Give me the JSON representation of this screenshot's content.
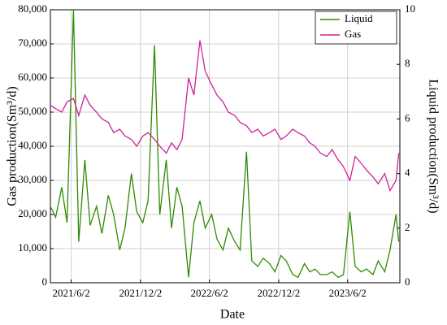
{
  "chart_data": {
    "type": "line",
    "xlabel": "Date",
    "ylabel": "Gas production(Sm³/d)",
    "y2label": "Liquid production(Sm³/d)",
    "x": [
      "2021/4/8",
      "2021/4/22",
      "2021/5/8",
      "2021/5/22",
      "2021/6/8",
      "2021/6/22",
      "2021/7/8",
      "2021/7/22",
      "2021/8/8",
      "2021/8/22",
      "2021/9/8",
      "2021/9/22",
      "2021/10/8",
      "2021/10/22",
      "2021/11/8",
      "2021/11/22",
      "2021/12/8",
      "2021/12/22",
      "2022/1/8",
      "2022/1/22",
      "2022/2/8",
      "2022/2/22",
      "2022/3/8",
      "2022/3/22",
      "2022/4/8",
      "2022/4/22",
      "2022/5/8",
      "2022/5/22",
      "2022/6/8",
      "2022/6/22",
      "2022/7/8",
      "2022/7/22",
      "2022/8/8",
      "2022/8/22",
      "2022/9/8",
      "2022/9/22",
      "2022/10/8",
      "2022/10/22",
      "2022/11/8",
      "2022/11/22",
      "2022/12/8",
      "2022/12/22",
      "2023/1/8",
      "2023/1/22",
      "2023/2/8",
      "2023/2/22",
      "2023/3/8",
      "2023/3/22",
      "2023/4/8",
      "2023/4/22",
      "2023/5/8",
      "2023/5/22",
      "2023/6/8",
      "2023/6/22",
      "2023/7/8",
      "2023/7/22",
      "2023/8/8",
      "2023/8/22",
      "2023/9/8",
      "2023/9/22",
      "2023/10/8",
      "2023/10/15"
    ],
    "xlim": [
      "2021/4/8",
      "2023/10/18"
    ],
    "xticks": [
      "2021/6/2",
      "2021/12/2",
      "2022/6/2",
      "2022/12/2",
      "2023/6/2"
    ],
    "ylim": [
      0,
      80000
    ],
    "yticks": [
      0,
      {
        "value": 10000,
        "label": "10,000"
      },
      {
        "value": 20000,
        "label": "20,000"
      },
      {
        "value": 30000,
        "label": "30,000"
      },
      {
        "value": 40000,
        "label": "40,000"
      },
      {
        "value": 50000,
        "label": "50,000"
      },
      {
        "value": 60000,
        "label": "60,000"
      },
      {
        "value": 70000,
        "label": "70,000"
      },
      {
        "value": 80000,
        "label": "80,000"
      }
    ],
    "y2lim": [
      0,
      10
    ],
    "y2ticks": [
      0,
      2,
      4,
      6,
      8,
      10
    ],
    "grid": true,
    "legend": "upper right",
    "series": [
      {
        "name": "Liquid",
        "color": "#2e8b00",
        "axis": "y2",
        "values": [
          2.8,
          2.4,
          3.5,
          2.2,
          10,
          1.5,
          4.5,
          2.1,
          2.8,
          1.8,
          3.2,
          2.5,
          1.2,
          2.0,
          4,
          2.6,
          2.2,
          3.0,
          8.7,
          2.5,
          4.5,
          2.0,
          3.5,
          2.8,
          0.2,
          2.2,
          3.0,
          2.0,
          2.5,
          1.6,
          1.2,
          2.0,
          1.5,
          1.2,
          4.8,
          0.8,
          0.6,
          0.9,
          0.7,
          0.4,
          1.0,
          0.8,
          0.3,
          0.2,
          0.7,
          0.4,
          0.5,
          0.3,
          0.3,
          0.4,
          0.2,
          0.3,
          2.6,
          0.6,
          0.4,
          0.5,
          0.3,
          0.8,
          0.4,
          1.2,
          2.5,
          1.5
        ]
      },
      {
        "name": "Gas",
        "color": "#cc2299",
        "values": [
          52000,
          51000,
          50000,
          53000,
          54000,
          49000,
          55000,
          52000,
          50000,
          48000,
          47000,
          44000,
          45000,
          43000,
          42000,
          40000,
          43000,
          44000,
          42000,
          40000,
          38000,
          41000,
          39000,
          42000,
          60000,
          55000,
          71000,
          62000,
          58000,
          55000,
          53000,
          50000,
          49000,
          47000,
          46000,
          44000,
          45000,
          43000,
          44000,
          45000,
          42000,
          43000,
          45000,
          44000,
          43000,
          41000,
          40000,
          38000,
          37000,
          39000,
          36000,
          34000,
          30000,
          37000,
          35000,
          33000,
          31000,
          29000,
          32000,
          27000,
          30000,
          38000
        ]
      }
    ]
  }
}
